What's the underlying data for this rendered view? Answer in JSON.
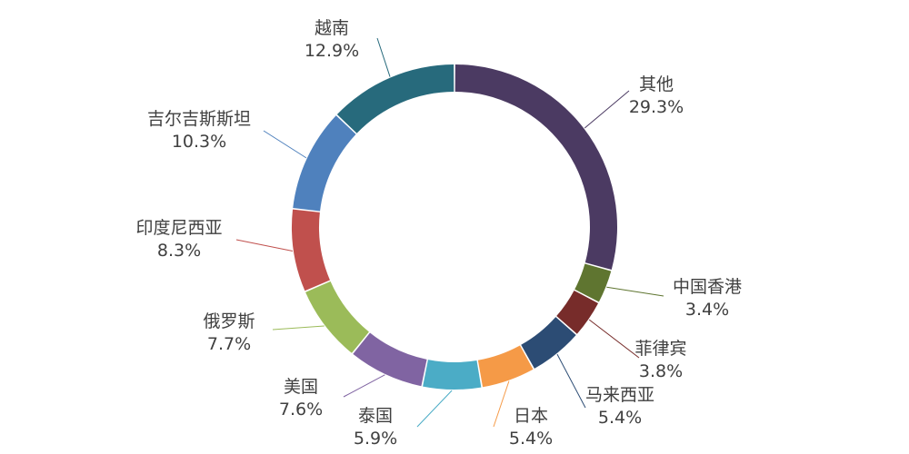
{
  "chart_data": {
    "type": "pie",
    "title": "",
    "donut": true,
    "legend": "none",
    "slices": [
      {
        "label": "其他",
        "value": 29.3,
        "pct_text": "29.3%",
        "color": "#4b3a62"
      },
      {
        "label": "中国香港",
        "value": 3.4,
        "pct_text": "3.4%",
        "color": "#5f7530"
      },
      {
        "label": "菲律宾",
        "value": 3.8,
        "pct_text": "3.8%",
        "color": "#772c2a"
      },
      {
        "label": "马来西亚",
        "value": 5.4,
        "pct_text": "5.4%",
        "color": "#2c4c74"
      },
      {
        "label": "日本",
        "value": 5.4,
        "pct_text": "5.4%",
        "color": "#f59a47"
      },
      {
        "label": "泰国",
        "value": 5.9,
        "pct_text": "5.9%",
        "color": "#4bacc6"
      },
      {
        "label": "美国",
        "value": 7.6,
        "pct_text": "7.6%",
        "color": "#8064a2"
      },
      {
        "label": "俄罗斯",
        "value": 7.7,
        "pct_text": "7.7%",
        "color": "#9bbb59"
      },
      {
        "label": "印度尼西亚",
        "value": 8.3,
        "pct_text": "8.3%",
        "color": "#c0504d"
      },
      {
        "label": "吉尔吉斯斯坦",
        "value": 10.3,
        "pct_text": "10.3%",
        "color": "#4f81bd"
      },
      {
        "label": "越南",
        "value": 12.9,
        "pct_text": "12.9%",
        "color": "#276a7c"
      }
    ]
  }
}
